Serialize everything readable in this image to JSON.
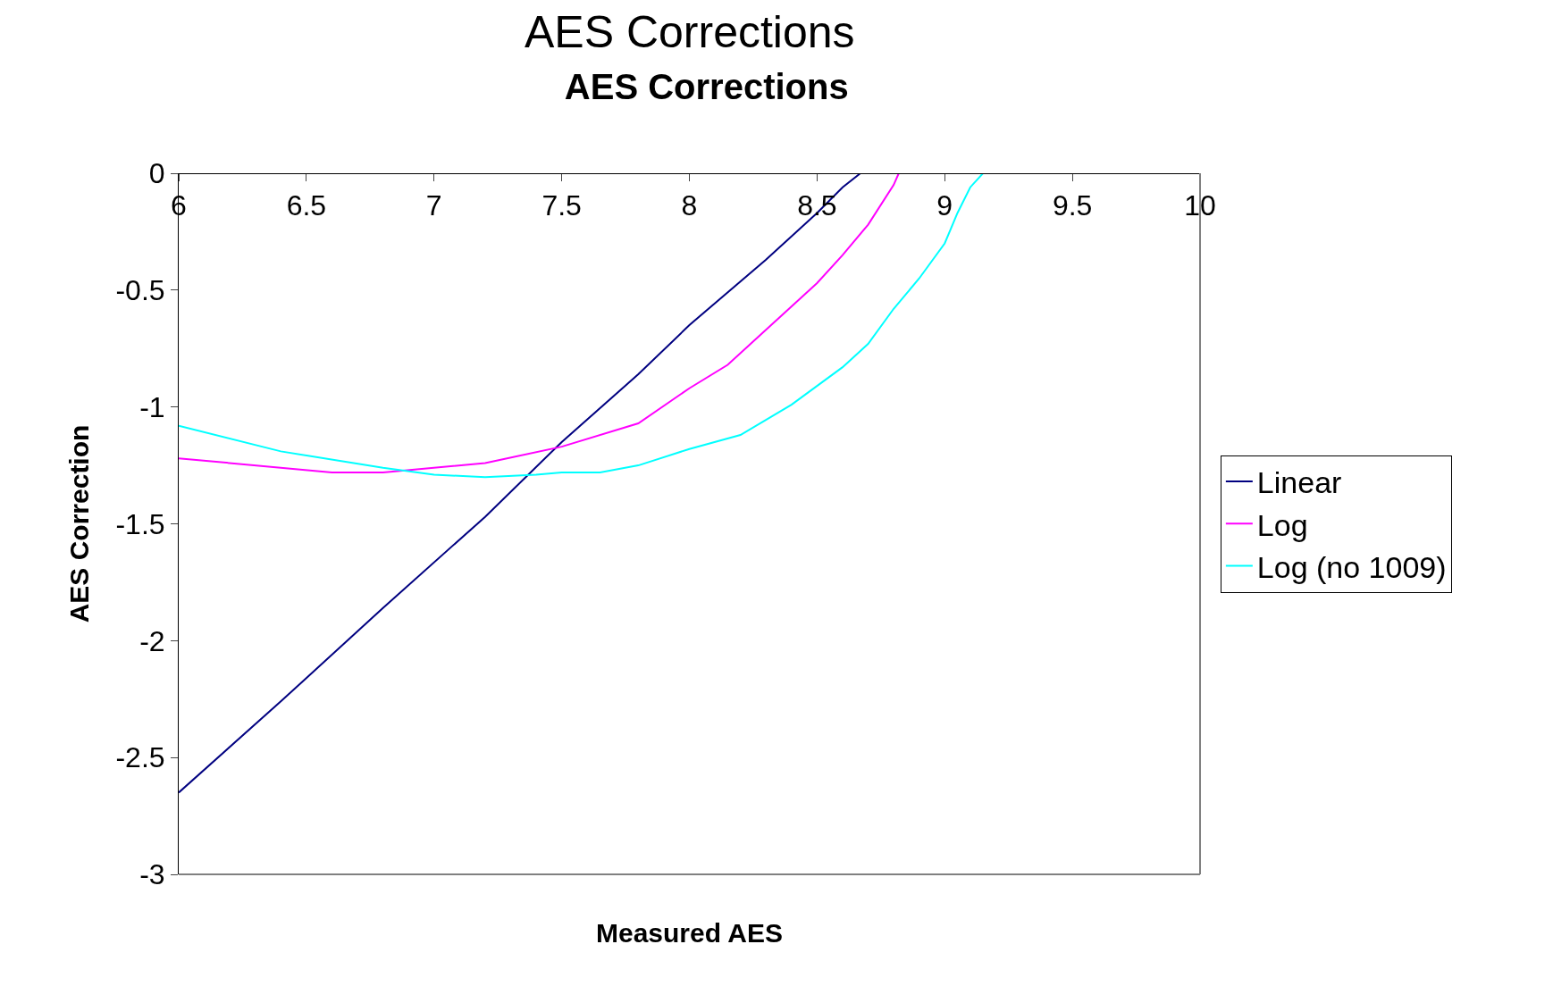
{
  "chart_data": {
    "type": "line",
    "title": "AES Corrections",
    "xlabel": "Measured AES",
    "ylabel": "AES Correction",
    "annotations": [
      "AES Corrections"
    ],
    "xlim": [
      6,
      10
    ],
    "xticks": [
      6,
      6.5,
      7,
      7.5,
      8,
      8.5,
      9,
      9.5,
      10
    ],
    "ylim": [
      -3,
      0
    ],
    "yticks": [
      0,
      -0.5,
      -1,
      -1.5,
      -2,
      -2.5,
      -3
    ],
    "grid": false,
    "legend": "right",
    "marker": "none",
    "line_style": "solid",
    "series": [
      {
        "name": "Linear",
        "color": "#000080",
        "x": [
          6,
          6.4,
          6.8,
          7.2,
          7.5,
          7.8,
          8,
          8.3,
          8.5,
          8.6,
          8.67,
          9,
          10
        ],
        "values": [
          -2.65,
          -2.26,
          -1.86,
          -1.47,
          -1.15,
          -0.86,
          -0.65,
          -0.37,
          -0.17,
          -0.06,
          0,
          0,
          0
        ]
      },
      {
        "name": "Log",
        "color": "#ff00ff",
        "x": [
          6,
          6.6,
          6.8,
          7.2,
          7.5,
          7.8,
          8,
          8.15,
          8.3,
          8.5,
          8.6,
          8.7,
          8.8,
          8.82,
          9,
          10
        ],
        "values": [
          -1.22,
          -1.28,
          -1.28,
          -1.24,
          -1.17,
          -1.07,
          -0.92,
          -0.82,
          -0.67,
          -0.47,
          -0.35,
          -0.22,
          -0.05,
          0,
          0,
          0
        ]
      },
      {
        "name": "Log (no 1009)",
        "color": "#00ffff",
        "x": [
          6,
          6.4,
          6.8,
          7,
          7.2,
          7.4,
          7.5,
          7.65,
          7.8,
          8,
          8.2,
          8.4,
          8.6,
          8.7,
          8.8,
          8.9,
          9,
          9.05,
          9.1,
          9.15,
          10
        ],
        "values": [
          -1.08,
          -1.19,
          -1.26,
          -1.29,
          -1.3,
          -1.29,
          -1.28,
          -1.28,
          -1.25,
          -1.18,
          -1.12,
          -0.99,
          -0.83,
          -0.73,
          -0.58,
          -0.45,
          -0.3,
          -0.17,
          -0.06,
          0,
          0
        ]
      }
    ]
  }
}
